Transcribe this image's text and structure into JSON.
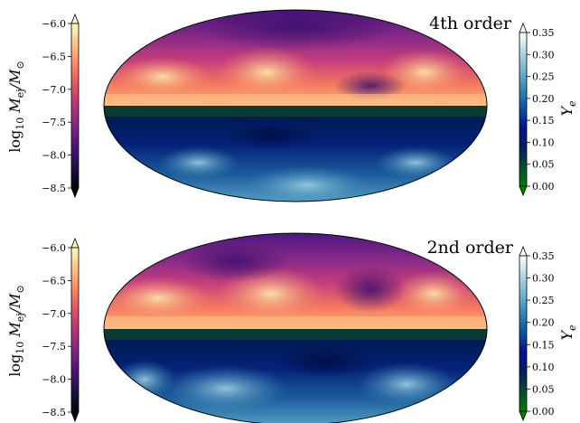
{
  "chart_data": [
    {
      "type": "heatmap",
      "title": "4th order",
      "projection": "mollweide",
      "upper_half": {
        "quantity": "log10 M_ej / M_sun",
        "ylabel_parts": {
          "prefix": "log",
          "sub": "10",
          "mid": " M",
          "sub2": "ej",
          "suffix": "/M",
          "sub3": "⊙"
        },
        "ticks": [
          -6.0,
          -6.5,
          -7.0,
          -7.5,
          -8.0,
          -8.5
        ],
        "tick_labels": [
          "−6.0",
          "−6.5",
          "−7.0",
          "−7.5",
          "−8.0",
          "−8.5"
        ],
        "range": [
          -8.5,
          -6.0
        ],
        "colormap": "magma",
        "extend": "both"
      },
      "lower_half": {
        "quantity": "Y_e",
        "ylabel_parts": {
          "main": "Y",
          "sub": "e"
        },
        "ticks": [
          0.0,
          0.05,
          0.1,
          0.15,
          0.2,
          0.25,
          0.3,
          0.35
        ],
        "tick_labels": [
          "0.00",
          "0.05",
          "0.10",
          "0.15",
          "0.20",
          "0.25",
          "0.30",
          "0.35"
        ],
        "range": [
          0.0,
          0.35
        ],
        "colormap": "ocean",
        "extend": "both"
      }
    },
    {
      "type": "heatmap",
      "title": "2nd order",
      "projection": "mollweide",
      "upper_half": {
        "quantity": "log10 M_ej / M_sun",
        "ylabel_parts": {
          "prefix": "log",
          "sub": "10",
          "mid": " M",
          "sub2": "ej",
          "suffix": "/M",
          "sub3": "⊙"
        },
        "ticks": [
          -6.0,
          -6.5,
          -7.0,
          -7.5,
          -8.0,
          -8.5
        ],
        "tick_labels": [
          "−6.0",
          "−6.5",
          "−7.0",
          "−7.5",
          "−8.0",
          "−8.5"
        ],
        "range": [
          -8.5,
          -6.0
        ],
        "colormap": "magma",
        "extend": "both"
      },
      "lower_half": {
        "quantity": "Y_e",
        "ylabel_parts": {
          "main": "Y",
          "sub": "e"
        },
        "ticks": [
          0.0,
          0.05,
          0.1,
          0.15,
          0.2,
          0.25,
          0.3,
          0.35
        ],
        "tick_labels": [
          "0.00",
          "0.05",
          "0.10",
          "0.15",
          "0.20",
          "0.25",
          "0.30",
          "0.35"
        ],
        "range": [
          0.0,
          0.35
        ],
        "colormap": "ocean",
        "extend": "both"
      }
    }
  ],
  "colors": {
    "magma": [
      "#000004",
      "#1c1044",
      "#4f127b",
      "#812581",
      "#b5367a",
      "#e55064",
      "#fb8761",
      "#fec287",
      "#fcfdbf"
    ],
    "ocean": [
      "#007f00",
      "#004f2f",
      "#002060",
      "#00128f",
      "#0b4ea0",
      "#2e86b8",
      "#6fb3cf",
      "#b4d9e6",
      "#ffffff"
    ]
  }
}
